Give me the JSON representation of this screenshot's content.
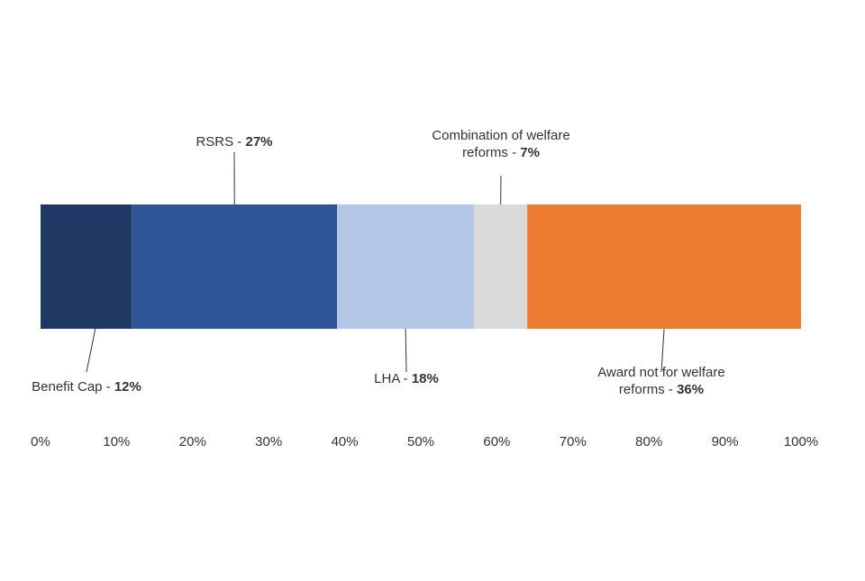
{
  "chart_data": {
    "type": "bar",
    "orientation": "horizontal",
    "stacked": true,
    "title": "",
    "xlabel": "",
    "ylabel": "",
    "xlim": [
      0,
      100
    ],
    "x_ticks": [
      "0%",
      "10%",
      "20%",
      "30%",
      "40%",
      "50%",
      "60%",
      "70%",
      "80%",
      "90%",
      "100%"
    ],
    "grid": false,
    "legend": "none",
    "series": [
      {
        "name": "Benefit Cap",
        "value": 12,
        "value_label": "12%",
        "color": "#203864"
      },
      {
        "name": "RSRS",
        "value": 27,
        "value_label": "27%",
        "color": "#2F5597"
      },
      {
        "name": "LHA",
        "value": 18,
        "value_label": "18%",
        "color": "#B4C7E7"
      },
      {
        "name": "Combination of welfare reforms",
        "value": 7,
        "value_label": "7%",
        "color": "#D9D9D9"
      },
      {
        "name": "Award not for welfare reforms",
        "value": 36,
        "value_label": "36%",
        "color": "#ED7D31"
      }
    ]
  }
}
